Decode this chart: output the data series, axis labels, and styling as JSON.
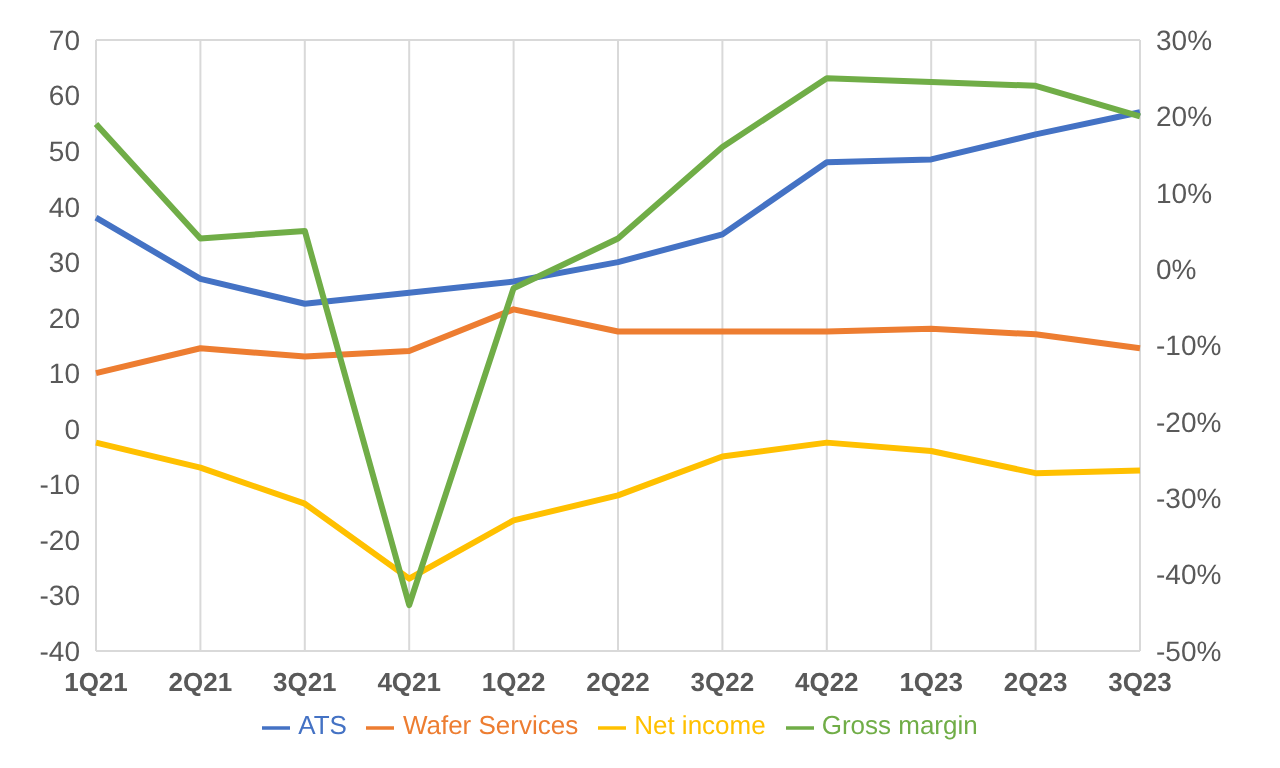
{
  "chart_data": {
    "type": "line",
    "categories": [
      "1Q21",
      "2Q21",
      "3Q21",
      "4Q21",
      "1Q22",
      "2Q22",
      "3Q22",
      "4Q22",
      "1Q23",
      "2Q23",
      "3Q23"
    ],
    "series": [
      {
        "name": "ATS",
        "color": "#4472c4",
        "values": [
          38,
          27,
          22.5,
          24.5,
          26.5,
          30,
          35,
          48,
          48.5,
          53,
          57
        ]
      },
      {
        "name": "Wafer Services",
        "color": "#ed7d31",
        "values": [
          10,
          14.5,
          13,
          14,
          21.5,
          17.5,
          17.5,
          17.5,
          18,
          17,
          14.5
        ]
      },
      {
        "name": "Net income",
        "color": "#ffc000",
        "values": [
          -2.5,
          -7,
          -13.5,
          -27,
          -16.5,
          -12,
          -5,
          -2.5,
          -4,
          -8,
          -7.5
        ]
      },
      {
        "name": "Gross margin",
        "color": "#70ad47",
        "axis": "y2",
        "values": [
          19,
          4,
          5,
          -44,
          -2.5,
          4,
          16,
          25,
          24.5,
          24,
          20
        ]
      }
    ],
    "ylim": [
      -40,
      70
    ],
    "yticks": [
      -40,
      -30,
      -20,
      -10,
      0,
      10,
      20,
      30,
      40,
      50,
      60,
      70
    ],
    "y2lim": [
      -50,
      30
    ],
    "y2ticks": [
      {
        "value": -50,
        "label": "-50%"
      },
      {
        "value": -40,
        "label": "-40%"
      },
      {
        "value": -30,
        "label": "-30%"
      },
      {
        "value": -20,
        "label": "-20%"
      },
      {
        "value": -10,
        "label": "-10%"
      },
      {
        "value": 0,
        "label": "0%"
      },
      {
        "value": 10,
        "label": "10%"
      },
      {
        "value": 20,
        "label": "20%"
      },
      {
        "value": 30,
        "label": "30%"
      }
    ],
    "grid": true,
    "legend": "bottom",
    "marker": "none",
    "line_style": "solid"
  }
}
